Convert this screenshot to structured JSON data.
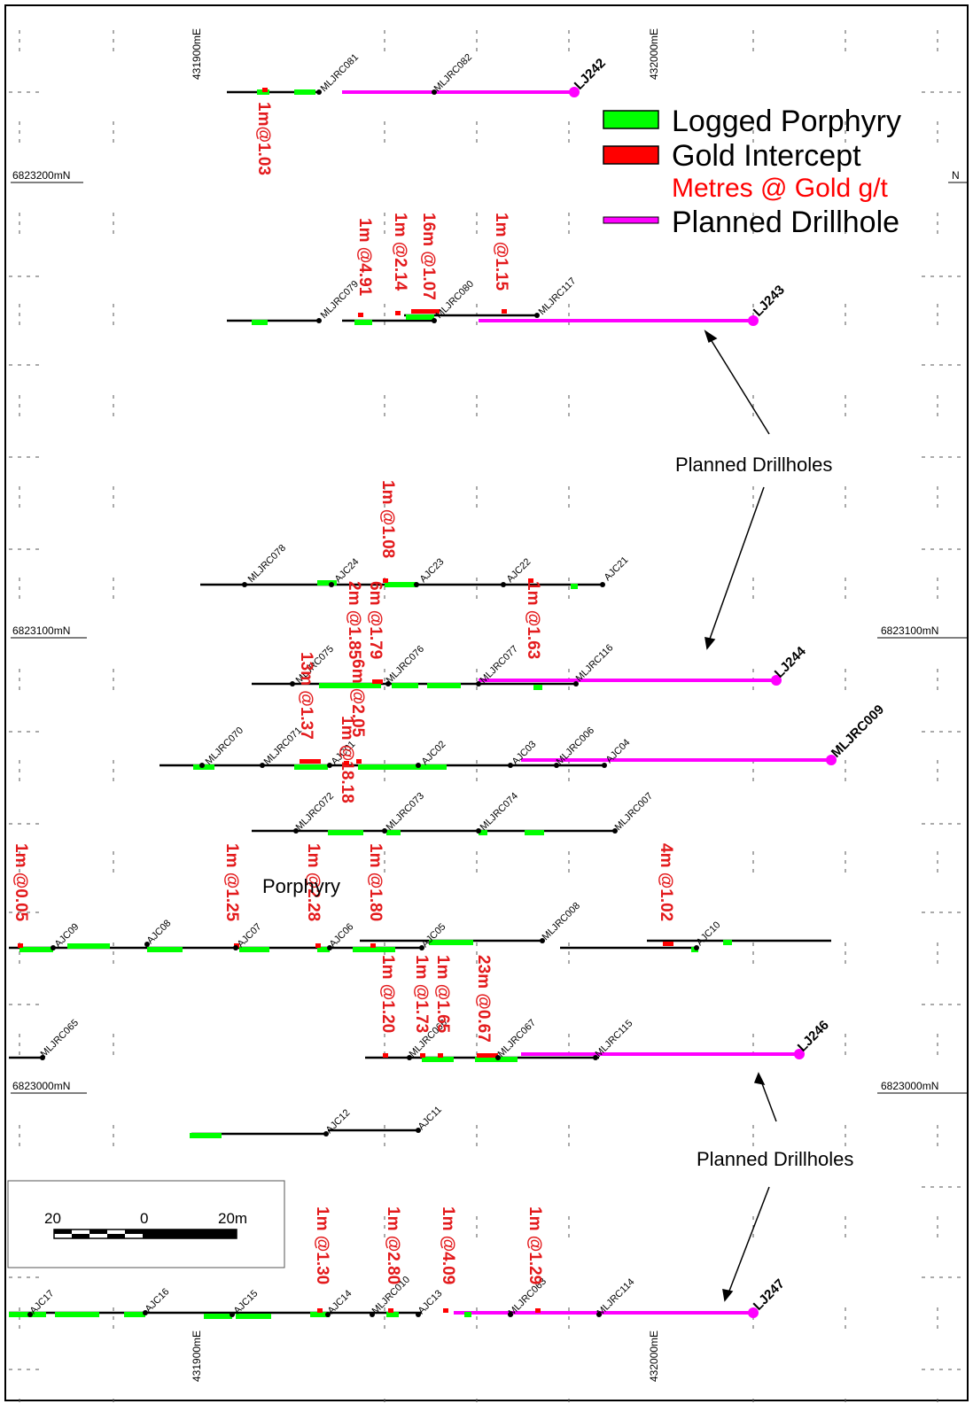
{
  "coordinates": {
    "eastings": [
      "431900mE",
      "432000mE"
    ],
    "northings": [
      "6823200mN",
      "6823100mN",
      "6823000mN"
    ],
    "edge_n": "N"
  },
  "legend": {
    "logged": "Logged Porphyry",
    "gold": "Gold Intercept",
    "metres": "Metres @ Gold g/t",
    "planned": "Planned Drillhole",
    "colors": {
      "porphyry": "#00ff00",
      "gold": "#ff0000",
      "planned": "#ff00ff",
      "intercept_text": "#e31a1c"
    }
  },
  "annotations": {
    "planned_drillholes": "Planned Drillholes",
    "porphyry": "Porphyry"
  },
  "scale": {
    "left": "20",
    "mid": "0",
    "right": "20m"
  },
  "collars": [
    "MLJRC081",
    "MLJRC082",
    "MLJRC079",
    "MLJRC080",
    "MLJRC117",
    "MLJRC078",
    "AJC24",
    "AJC23",
    "AJC22",
    "AJC21",
    "MLJRC075",
    "MLJRC076",
    "MLJRC077",
    "MLJRC116",
    "MLJRC070",
    "MLJRC071",
    "AJC01",
    "AJC02",
    "AJC03",
    "MLJRC006",
    "AJC04",
    "MLJRC072",
    "MLJRC073",
    "MLJRC074",
    "MLJRC007",
    "AJC09",
    "AJC08",
    "AJC07",
    "AJC06",
    "AJC05",
    "MLJRC008",
    "AJC10",
    "MLJRC065",
    "MLJRC066",
    "MLJRC067",
    "MLJRC115",
    "AJC12",
    "AJC11",
    "AJC17",
    "AJC16",
    "AJC15",
    "AJC14",
    "MLJRC010",
    "AJC13",
    "MLJRC063",
    "MLJRC114"
  ],
  "planned_holes": [
    "LJ242",
    "LJ243",
    "LJ244",
    "MLJRC009",
    "LJ246",
    "LJ247"
  ],
  "intercepts": [
    "1m@1.03",
    "1m @4.91",
    "1m @2.14",
    "16m @1.07",
    "1m @1.15",
    "1m @1.08",
    "1m @1.63",
    "6m @1.79",
    "2m @1.85",
    "6m @2.05",
    "13m @1.37",
    "1m @18.18",
    "1m @0.05",
    "1m @1.25",
    "1m @2.28",
    "1m @1.80",
    "4m @1.02",
    "1m @1.20",
    "1m @1.73",
    "1m @1.65",
    "23m @0.67",
    "1m @1.30",
    "1m @2.80",
    "1m @4.09",
    "1m @1.29"
  ]
}
